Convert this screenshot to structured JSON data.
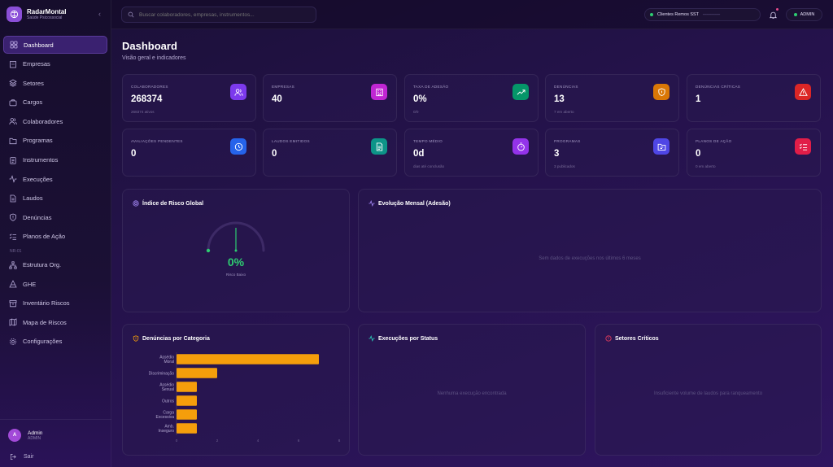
{
  "brand": {
    "name": "RadarMontal",
    "tagline": "Saúde Psicossocial"
  },
  "nav": {
    "items": [
      {
        "label": "Dashboard",
        "icon": "grid-icon",
        "active": true
      },
      {
        "label": "Empresas",
        "icon": "building-icon"
      },
      {
        "label": "Setores",
        "icon": "layers-icon"
      },
      {
        "label": "Cargos",
        "icon": "briefcase-icon"
      },
      {
        "label": "Colaboradores",
        "icon": "users-icon"
      },
      {
        "label": "Programas",
        "icon": "folder-icon"
      },
      {
        "label": "Instrumentos",
        "icon": "clipboard-icon"
      },
      {
        "label": "Execuções",
        "icon": "activity-icon"
      },
      {
        "label": "Laudos",
        "icon": "file-icon"
      },
      {
        "label": "Denúncias",
        "icon": "shield-alert-icon"
      },
      {
        "label": "Planos de Ação",
        "icon": "list-check-icon"
      }
    ],
    "section_label": "NR-01",
    "section_items": [
      {
        "label": "Estrutura Org.",
        "icon": "org-icon"
      },
      {
        "label": "GHE",
        "icon": "pyramid-icon"
      },
      {
        "label": "Inventário Riscos",
        "icon": "archive-icon"
      },
      {
        "label": "Mapa de Riscos",
        "icon": "map-icon"
      },
      {
        "label": "Configurações",
        "icon": "gear-icon"
      }
    ]
  },
  "user": {
    "initial": "A",
    "name": "Admin",
    "role": "ADMIN"
  },
  "logout_label": "Sair",
  "topbar": {
    "search_placeholder": "Buscar colaboradores, empresas, instrumentos...",
    "client": "Clientes Remos SST",
    "role_badge": "ADMIN"
  },
  "page": {
    "title": "Dashboard",
    "subtitle": "Visão geral e indicadores"
  },
  "stats": [
    {
      "label": "COLABORADORES",
      "value": "268374",
      "sub": "268374 ativos",
      "color": "#7c3aed",
      "icon": "users-icon"
    },
    {
      "label": "EMPRESAS",
      "value": "40",
      "sub": "",
      "color": "#c026d3",
      "icon": "building-icon"
    },
    {
      "label": "TAXA DE ADESÃO",
      "value": "0%",
      "sub": "0/0",
      "color": "#059669",
      "icon": "trend-up-icon"
    },
    {
      "label": "DENÚNCIAS",
      "value": "13",
      "sub": "7 em aberto",
      "color": "#d97706",
      "icon": "shield-alert-icon"
    },
    {
      "label": "DENÚNCIAS CRÍTICAS",
      "value": "1",
      "sub": "",
      "color": "#dc2626",
      "icon": "warning-icon"
    },
    {
      "label": "AVALIAÇÕES PENDENTES",
      "value": "0",
      "sub": "",
      "color": "#2563eb",
      "icon": "clock-icon"
    },
    {
      "label": "LAUDOS EMITIDOS",
      "value": "0",
      "sub": "",
      "color": "#0d9488",
      "icon": "file-icon"
    },
    {
      "label": "TEMPO MÉDIO",
      "value": "0d",
      "sub": "dias até conclusão",
      "color": "#9333ea",
      "icon": "timer-icon"
    },
    {
      "label": "PROGRAMAS",
      "value": "3",
      "sub": "3 publicados",
      "color": "#4f46e5",
      "icon": "folder-icon"
    },
    {
      "label": "PLANOS DE AÇÃO",
      "value": "0",
      "sub": "0 em aberto",
      "color": "#e11d48",
      "icon": "list-check-icon"
    }
  ],
  "risk": {
    "title": "Índice de Risco Global",
    "value": "0%",
    "label": "Risco Baixo",
    "level": 0
  },
  "evolution": {
    "title": "Evolução Mensal (Adesão)",
    "empty": "Sem dados de execuções nos últimos 6 meses"
  },
  "complaints": {
    "title": "Denúncias por Categoria"
  },
  "executions": {
    "title": "Execuções por Status",
    "empty": "Nenhuma execução encontrada"
  },
  "sectors": {
    "title": "Setores Críticos",
    "empty": "Insuficiente volume de laudos para ranqueamento"
  },
  "colors": {
    "accent": "#7c3aed",
    "bar": "#f59e0b",
    "risk_low": "#2ecc71"
  },
  "chart_data": {
    "type": "bar",
    "orientation": "horizontal",
    "categories": [
      "Assédio Moral",
      "Discriminação",
      "Assédio Sexual",
      "Outros",
      "Carga Excessiva",
      "Amb. Inseguro"
    ],
    "values": [
      7,
      2,
      1,
      1,
      1,
      1
    ],
    "xlim": [
      0,
      8
    ],
    "xticks": [
      "0",
      "2",
      "4",
      "6",
      "8"
    ],
    "title": "Denúncias por Categoria",
    "grid": false
  }
}
